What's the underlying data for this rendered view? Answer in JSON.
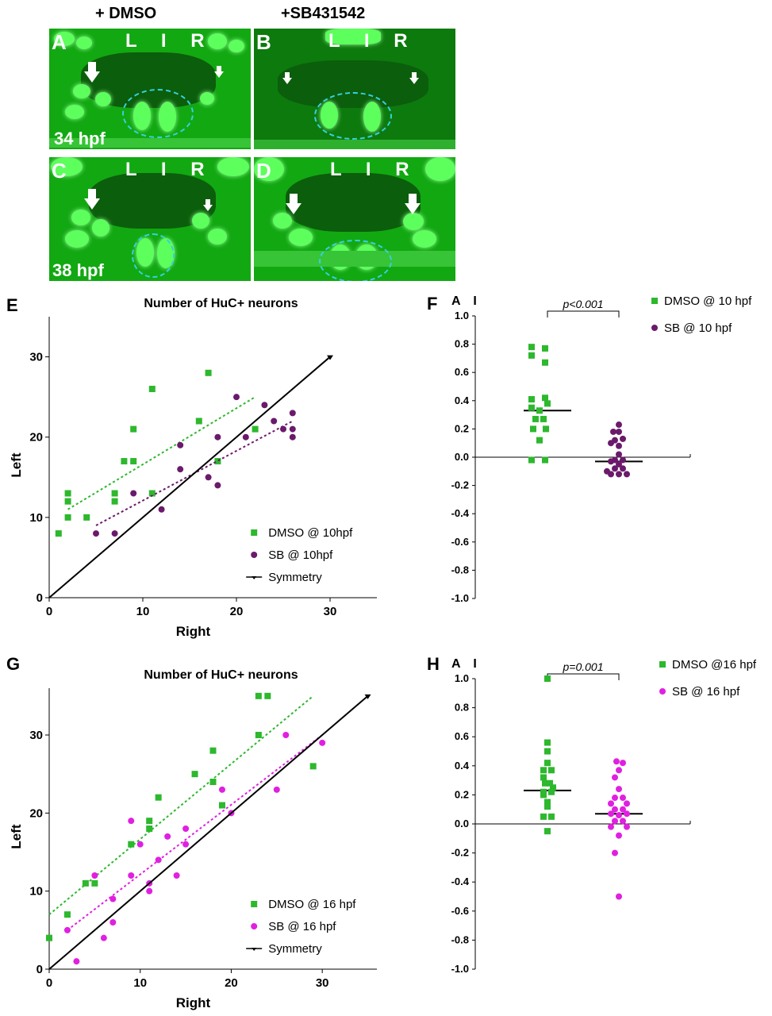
{
  "figure": {
    "headers": [
      "+ DMSO",
      "+SB431542"
    ],
    "micrographs": [
      {
        "letter": "A",
        "lir": "L I R",
        "time": "34 hpf"
      },
      {
        "letter": "B",
        "lir": "L I R",
        "time": ""
      },
      {
        "letter": "C",
        "lir": "L I R",
        "time": "38 hpf"
      },
      {
        "letter": "D",
        "lir": "L I R",
        "time": ""
      }
    ],
    "panel_letters": {
      "E": "E",
      "F": "F",
      "G": "G",
      "H": "H"
    }
  },
  "colors": {
    "dmso": "#2db82d",
    "sb10": "#6b1a6b",
    "sb16": "#e020e0",
    "symmetry": "#000000",
    "cyan_oval": "#35d0e0"
  },
  "chart_data": [
    {
      "id": "E",
      "type": "scatter",
      "title": "Number of HuC+ neurons",
      "xlabel": "Right",
      "ylabel": "Left",
      "xlim": [
        0,
        35
      ],
      "ylim": [
        0,
        35
      ],
      "xticks": [
        0,
        10,
        20,
        30
      ],
      "yticks": [
        0,
        10,
        20,
        30
      ],
      "legend_position": "bottom-right",
      "series": [
        {
          "name": "DMSO @ 10hpf",
          "marker": "square",
          "points": [
            [
              1,
              8
            ],
            [
              2,
              13
            ],
            [
              2,
              12
            ],
            [
              2,
              10
            ],
            [
              4,
              10
            ],
            [
              7,
              13
            ],
            [
              7,
              12
            ],
            [
              8,
              17
            ],
            [
              9,
              21
            ],
            [
              9,
              17
            ],
            [
              11,
              26
            ],
            [
              11,
              13
            ],
            [
              16,
              22
            ],
            [
              17,
              28
            ],
            [
              18,
              17
            ],
            [
              22,
              21
            ]
          ],
          "trend": [
            [
              2,
              11
            ],
            [
              22,
              25
            ]
          ]
        },
        {
          "name": "SB @ 10hpf",
          "marker": "circle",
          "points": [
            [
              5,
              8
            ],
            [
              7,
              8
            ],
            [
              9,
              13
            ],
            [
              12,
              11
            ],
            [
              14,
              19
            ],
            [
              14,
              16
            ],
            [
              17,
              15
            ],
            [
              18,
              20
            ],
            [
              18,
              14
            ],
            [
              20,
              25
            ],
            [
              21,
              20
            ],
            [
              23,
              24
            ],
            [
              24,
              22
            ],
            [
              25,
              21
            ],
            [
              26,
              23
            ],
            [
              26,
              21
            ],
            [
              26,
              20
            ]
          ],
          "trend": [
            [
              5,
              9
            ],
            [
              26,
              22
            ]
          ]
        },
        {
          "name": "Symmetry",
          "marker": "line",
          "points": [
            [
              0,
              0
            ],
            [
              30,
              30
            ]
          ]
        }
      ]
    },
    {
      "id": "F",
      "type": "scatter",
      "ylabel": "A I",
      "ylim": [
        -1.0,
        1.0
      ],
      "yticks": [
        "1.0",
        "0.8",
        "0.6",
        "0.4",
        "0.2",
        "0.0",
        "-0.2",
        "-0.4",
        "-0.6",
        "-0.8",
        "-1.0"
      ],
      "annotation": "p<0.001",
      "legend_position": "top-right",
      "series": [
        {
          "name": "DMSO @ 10 hpf",
          "marker": "square",
          "mean": 0.33,
          "points": [
            [
              -0.2,
              0.78
            ],
            [
              -0.03,
              0.77
            ],
            [
              -0.2,
              0.72
            ],
            [
              -0.03,
              0.67
            ],
            [
              -0.2,
              0.41
            ],
            [
              -0.03,
              0.42
            ],
            [
              0.0,
              0.38
            ],
            [
              -0.2,
              0.35
            ],
            [
              -0.1,
              0.33
            ],
            [
              -0.15,
              0.27
            ],
            [
              -0.05,
              0.27
            ],
            [
              -0.18,
              0.2
            ],
            [
              -0.02,
              0.2
            ],
            [
              -0.1,
              0.12
            ],
            [
              -0.2,
              -0.02
            ],
            [
              -0.03,
              -0.02
            ]
          ]
        },
        {
          "name": "SB @ 10 hpf",
          "marker": "circle",
          "mean": -0.03,
          "points": [
            [
              0.0,
              0.23
            ],
            [
              0.0,
              0.18
            ],
            [
              -0.07,
              0.18
            ],
            [
              -0.05,
              0.12
            ],
            [
              0.05,
              0.13
            ],
            [
              -0.1,
              0.1
            ],
            [
              0.0,
              0.08
            ],
            [
              0.0,
              0.02
            ],
            [
              -0.05,
              -0.02
            ],
            [
              0.05,
              -0.02
            ],
            [
              -0.1,
              -0.03
            ],
            [
              0.0,
              -0.05
            ],
            [
              -0.05,
              -0.08
            ],
            [
              0.05,
              -0.08
            ],
            [
              -0.15,
              -0.1
            ],
            [
              0.0,
              -0.12
            ],
            [
              -0.1,
              -0.12
            ],
            [
              0.1,
              -0.12
            ]
          ]
        }
      ]
    },
    {
      "id": "G",
      "type": "scatter",
      "title": "Number of HuC+ neurons",
      "xlabel": "Right",
      "ylabel": "Left",
      "xlim": [
        0,
        36
      ],
      "ylim": [
        0,
        36
      ],
      "xticks": [
        0,
        10,
        20,
        30
      ],
      "yticks": [
        0,
        10,
        20,
        30
      ],
      "legend_position": "bottom-right",
      "series": [
        {
          "name": "DMSO @ 16 hpf",
          "marker": "square",
          "points": [
            [
              0,
              4
            ],
            [
              2,
              7
            ],
            [
              4,
              11
            ],
            [
              5,
              11
            ],
            [
              9,
              16
            ],
            [
              11,
              19
            ],
            [
              11,
              18
            ],
            [
              12,
              22
            ],
            [
              16,
              25
            ],
            [
              18,
              28
            ],
            [
              18,
              24
            ],
            [
              19,
              21
            ],
            [
              23,
              35
            ],
            [
              24,
              35
            ],
            [
              23,
              30
            ],
            [
              29,
              26
            ]
          ],
          "trend": [
            [
              0,
              7
            ],
            [
              29,
              35
            ]
          ]
        },
        {
          "name": "SB @ 16 hpf",
          "marker": "circle",
          "points": [
            [
              2,
              5
            ],
            [
              3,
              1
            ],
            [
              5,
              12
            ],
            [
              6,
              4
            ],
            [
              7,
              6
            ],
            [
              7,
              9
            ],
            [
              9,
              19
            ],
            [
              9,
              12
            ],
            [
              10,
              16
            ],
            [
              11,
              11
            ],
            [
              11,
              10
            ],
            [
              12,
              14
            ],
            [
              13,
              17
            ],
            [
              14,
              12
            ],
            [
              15,
              18
            ],
            [
              15,
              16
            ],
            [
              19,
              23
            ],
            [
              20,
              20
            ],
            [
              25,
              23
            ],
            [
              26,
              30
            ],
            [
              30,
              29
            ]
          ],
          "trend": [
            [
              2,
              5
            ],
            [
              30,
              30
            ]
          ]
        },
        {
          "name": "Symmetry",
          "marker": "line",
          "points": [
            [
              0,
              0
            ],
            [
              35,
              35
            ]
          ]
        }
      ]
    },
    {
      "id": "H",
      "type": "scatter",
      "ylabel": "A I",
      "ylim": [
        -1.0,
        1.0
      ],
      "yticks": [
        "1.0",
        "0.8",
        "0.6",
        "0.4",
        "0.2",
        "0.0",
        "-0.2",
        "-0.4",
        "-0.6",
        "-0.8",
        "-1.0"
      ],
      "annotation": "p=0.001",
      "legend_position": "top-right",
      "series": [
        {
          "name": "DMSO @16 hpf",
          "marker": "square",
          "mean": 0.23,
          "points": [
            [
              0.0,
              1.0
            ],
            [
              0.0,
              0.56
            ],
            [
              0.0,
              0.5
            ],
            [
              0.0,
              0.42
            ],
            [
              -0.05,
              0.37
            ],
            [
              0.05,
              0.37
            ],
            [
              -0.05,
              0.32
            ],
            [
              -0.03,
              0.28
            ],
            [
              0.03,
              0.28
            ],
            [
              0.07,
              0.25
            ],
            [
              -0.05,
              0.22
            ],
            [
              0.05,
              0.22
            ],
            [
              -0.05,
              0.2
            ],
            [
              0.0,
              0.15
            ],
            [
              0.0,
              0.12
            ],
            [
              -0.05,
              0.05
            ],
            [
              0.05,
              0.05
            ],
            [
              0.0,
              -0.05
            ]
          ]
        },
        {
          "name": "SB @ 16 hpf",
          "marker": "circle",
          "mean": 0.07,
          "points": [
            [
              -0.03,
              0.43
            ],
            [
              0.05,
              0.42
            ],
            [
              0.0,
              0.37
            ],
            [
              -0.05,
              0.32
            ],
            [
              0.0,
              0.24
            ],
            [
              -0.05,
              0.18
            ],
            [
              0.05,
              0.18
            ],
            [
              -0.1,
              0.14
            ],
            [
              0.1,
              0.14
            ],
            [
              -0.05,
              0.1
            ],
            [
              0.05,
              0.1
            ],
            [
              -0.1,
              0.07
            ],
            [
              0.0,
              0.06
            ],
            [
              0.1,
              0.07
            ],
            [
              -0.05,
              0.02
            ],
            [
              0.05,
              0.02
            ],
            [
              -0.1,
              -0.02
            ],
            [
              0.1,
              -0.02
            ],
            [
              0.0,
              -0.08
            ],
            [
              -0.05,
              -0.2
            ],
            [
              0.0,
              -0.5
            ]
          ]
        }
      ]
    }
  ]
}
